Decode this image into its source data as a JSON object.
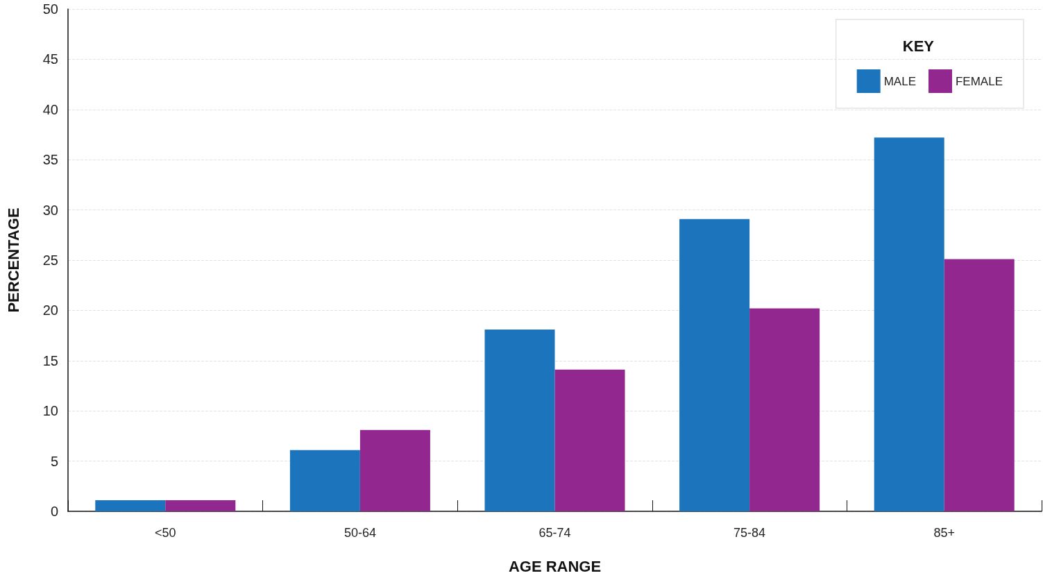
{
  "chart_data": {
    "type": "bar",
    "xlabel": "AGE RANGE",
    "ylabel": "PERCENTAGE",
    "legend_title": "KEY",
    "categories": [
      "<50",
      "50-64",
      "65-74",
      "75-84",
      "85+"
    ],
    "series": [
      {
        "name": "MALE",
        "color": "#1c75bc",
        "values": [
          1.1,
          6.1,
          18.1,
          29.1,
          37.2
        ]
      },
      {
        "name": "FEMALE",
        "color": "#92278f",
        "values": [
          1.1,
          8.1,
          14.1,
          20.2,
          25.1
        ]
      }
    ],
    "ylim": [
      0,
      50
    ],
    "yticks": [
      0,
      5,
      10,
      15,
      20,
      25,
      30,
      35,
      40,
      45,
      50
    ],
    "grid": "y",
    "legend": "top right"
  }
}
